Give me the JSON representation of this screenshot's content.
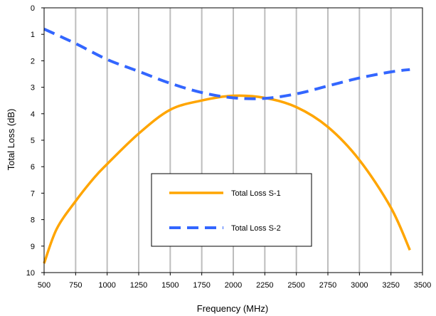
{
  "chart_data": {
    "type": "line",
    "title": "",
    "xlabel": "Frequency (MHz)",
    "ylabel": "Total Loss (dB)",
    "xlim": [
      500,
      3500
    ],
    "ylim": [
      0,
      10
    ],
    "y_inverted": true,
    "x_ticks": [
      500,
      750,
      1000,
      1250,
      1500,
      1750,
      2000,
      2250,
      2500,
      2750,
      3000,
      3250,
      3500
    ],
    "y_ticks": [
      0,
      1,
      2,
      3,
      4,
      5,
      6,
      7,
      8,
      9,
      10
    ],
    "grid": "vertical",
    "legend_position": "center-bottom",
    "series": [
      {
        "name": "Total Loss S-1",
        "color": "#ffa500",
        "style": "solid",
        "x": [
          500,
          600,
          750,
          900,
          1000,
          1250,
          1500,
          1750,
          2000,
          2250,
          2500,
          2750,
          3000,
          3250,
          3400
        ],
        "y": [
          9.65,
          8.35,
          7.3,
          6.4,
          5.9,
          4.75,
          3.85,
          3.5,
          3.32,
          3.4,
          3.75,
          4.5,
          5.75,
          7.55,
          9.15
        ]
      },
      {
        "name": "Total Loss S-2",
        "color": "#3366ff",
        "style": "dashed",
        "x": [
          500,
          750,
          1000,
          1250,
          1500,
          1750,
          2000,
          2250,
          2500,
          2750,
          3000,
          3250,
          3400
        ],
        "y": [
          0.8,
          1.35,
          1.95,
          2.4,
          2.85,
          3.2,
          3.4,
          3.42,
          3.25,
          2.95,
          2.65,
          2.42,
          2.33
        ]
      }
    ]
  }
}
